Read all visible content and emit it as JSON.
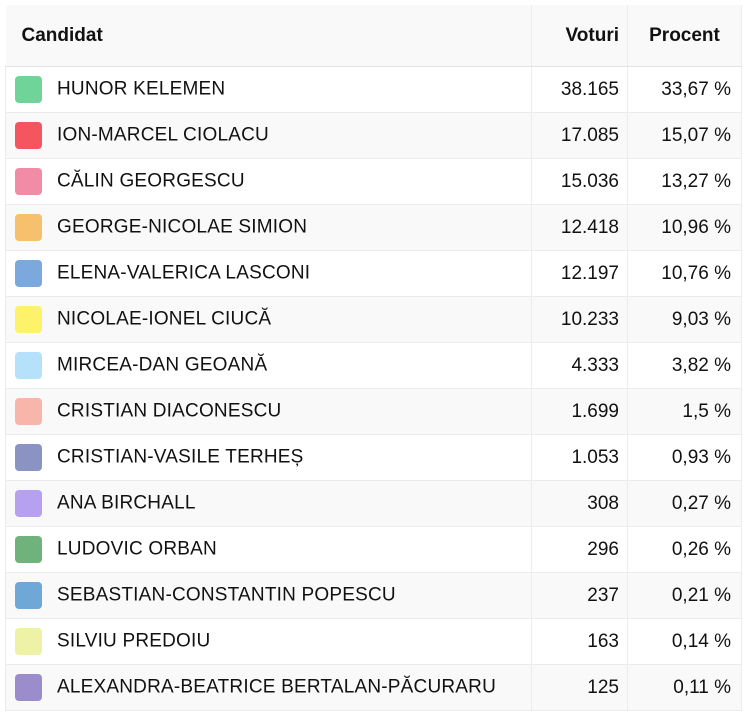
{
  "header": {
    "candidate": "Candidat",
    "votes": "Voturi",
    "percent": "Procent"
  },
  "rows": [
    {
      "name": "HUNOR KELEMEN",
      "votes": "38.165",
      "percent": "33,67 %",
      "color": "#6fd39a"
    },
    {
      "name": "ION-MARCEL CIOLACU",
      "votes": "17.085",
      "percent": "15,07 %",
      "color": "#f4555f"
    },
    {
      "name": "CĂLIN GEORGESCU",
      "votes": "15.036",
      "percent": "13,27 %",
      "color": "#f28ca6"
    },
    {
      "name": "GEORGE-NICOLAE SIMION",
      "votes": "12.418",
      "percent": "10,96 %",
      "color": "#f7c06d"
    },
    {
      "name": "ELENA-VALERICA LASCONI",
      "votes": "12.197",
      "percent": "10,76 %",
      "color": "#7ba9dd"
    },
    {
      "name": "NICOLAE-IONEL CIUCĂ",
      "votes": "10.233",
      "percent": "9,03 %",
      "color": "#fdf26a"
    },
    {
      "name": "MIRCEA-DAN GEOANĂ",
      "votes": "4.333",
      "percent": "3,82 %",
      "color": "#b6e1fb"
    },
    {
      "name": "CRISTIAN DIACONESCU",
      "votes": "1.699",
      "percent": "1,5 %",
      "color": "#f7b6a9"
    },
    {
      "name": "CRISTIAN-VASILE TERHEȘ",
      "votes": "1.053",
      "percent": "0,93 %",
      "color": "#8b93c2"
    },
    {
      "name": "ANA BIRCHALL",
      "votes": "308",
      "percent": "0,27 %",
      "color": "#b6a1f0"
    },
    {
      "name": "LUDOVIC ORBAN",
      "votes": "296",
      "percent": "0,26 %",
      "color": "#70b27c"
    },
    {
      "name": "SEBASTIAN-CONSTANTIN POPESCU",
      "votes": "237",
      "percent": "0,21 %",
      "color": "#6fa8d6"
    },
    {
      "name": "SILVIU PREDOIU",
      "votes": "163",
      "percent": "0,14 %",
      "color": "#eef2a6"
    },
    {
      "name": "ALEXANDRA-BEATRICE BERTALAN-PĂCURARU",
      "votes": "125",
      "percent": "0,11 %",
      "color": "#9b8dcc"
    }
  ]
}
